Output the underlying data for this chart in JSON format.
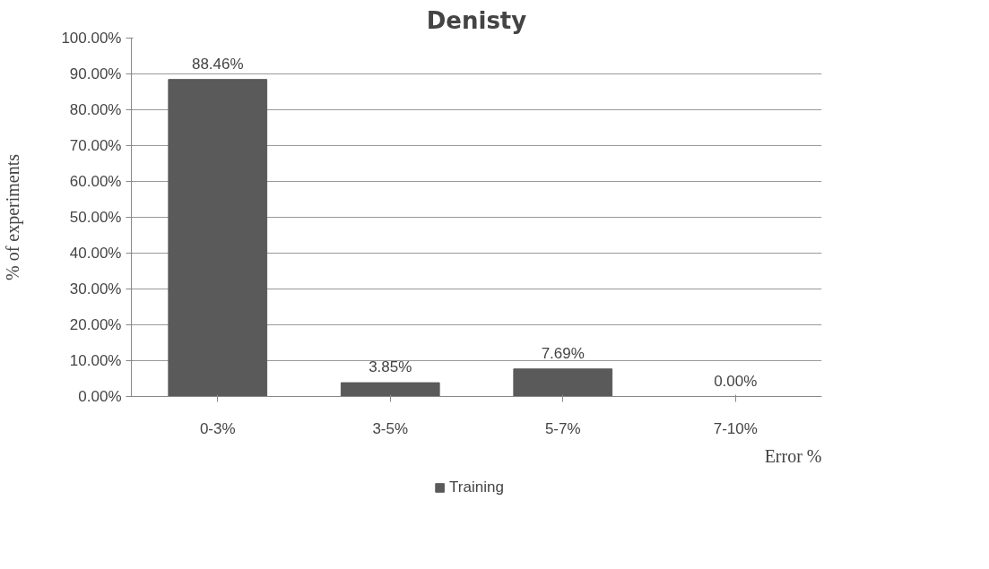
{
  "chart_data": {
    "type": "bar",
    "title": "Denisty",
    "xlabel": "Error %",
    "ylabel": "% of experiments",
    "categories": [
      "0-3%",
      "3-5%",
      "5-7%",
      "7-10%"
    ],
    "series": [
      {
        "name": "Training",
        "color": "#5a5a5a",
        "values": [
          88.46,
          3.85,
          7.69,
          0.0
        ]
      }
    ],
    "value_labels": [
      "88.46%",
      "3.85%",
      "7.69%",
      "0.00%"
    ],
    "ylim": [
      0,
      100
    ],
    "yticks": [
      {
        "value": 0,
        "label": "0.00%"
      },
      {
        "value": 10,
        "label": "10.00%"
      },
      {
        "value": 20,
        "label": "20.00%"
      },
      {
        "value": 30,
        "label": "30.00%"
      },
      {
        "value": 40,
        "label": "40.00%"
      },
      {
        "value": 50,
        "label": "50.00%"
      },
      {
        "value": 60,
        "label": "60.00%"
      },
      {
        "value": 70,
        "label": "70.00%"
      },
      {
        "value": 80,
        "label": "80.00%"
      },
      {
        "value": 90,
        "label": "90.00%"
      },
      {
        "value": 100,
        "label": "100.00%"
      }
    ],
    "grid": "y",
    "legend": "bottom"
  }
}
